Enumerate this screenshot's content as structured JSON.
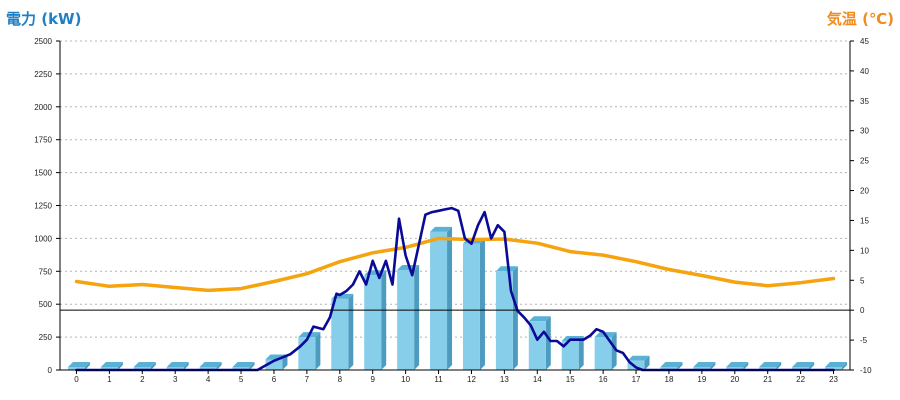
{
  "titles": {
    "left": "電力 (kW)",
    "right": "気温 (℃)"
  },
  "colors": {
    "bar_face": "#87ceeb",
    "bar_side": "#4d9bbf",
    "bar_top": "#5ab1d6",
    "power_line": "#0a0a96",
    "temp_line": "#f5a30f",
    "left_title": "#1f7fc4",
    "right_title": "#f08c1e"
  },
  "chart_data": {
    "type": "bar",
    "categories": [
      "0",
      "1",
      "2",
      "3",
      "4",
      "5",
      "6",
      "7",
      "8",
      "9",
      "10",
      "11",
      "12",
      "13",
      "14",
      "15",
      "16",
      "17",
      "18",
      "19",
      "20",
      "21",
      "22",
      "23"
    ],
    "ylim": [
      0,
      2500
    ],
    "y2lim": [
      -10,
      45
    ],
    "y_ticks": [
      "0",
      "250",
      "500",
      "750",
      "1000",
      "1250",
      "1500",
      "1750",
      "2000",
      "2250",
      "2500"
    ],
    "y2_ticks": [
      "-10",
      "-5",
      "0",
      "5",
      "10",
      "15",
      "20",
      "25",
      "30",
      "35",
      "40",
      "45"
    ],
    "grid": true,
    "series": [
      {
        "kind": "bar",
        "axis": "left",
        "values": [
          0,
          0,
          0,
          0,
          0,
          0,
          80,
          250,
          540,
          720,
          760,
          1050,
          960,
          750,
          370,
          220,
          250,
          70,
          0,
          0,
          0,
          0,
          0,
          0
        ]
      },
      {
        "kind": "line",
        "axis": "left",
        "x": [
          0,
          1,
          2,
          3,
          4,
          5,
          5.5,
          6,
          6.2,
          6.5,
          6.8,
          7,
          7.2,
          7.5,
          7.7,
          7.9,
          8,
          8.2,
          8.4,
          8.6,
          8.8,
          9,
          9.2,
          9.4,
          9.6,
          9.8,
          10,
          10.2,
          10.4,
          10.6,
          10.8,
          11,
          11.2,
          11.4,
          11.6,
          11.8,
          12,
          12.2,
          12.4,
          12.6,
          12.8,
          13,
          13.2,
          13.4,
          13.6,
          13.8,
          14,
          14.2,
          14.4,
          14.6,
          14.8,
          15,
          15.2,
          15.4,
          15.6,
          15.8,
          16,
          16.2,
          16.4,
          16.6,
          16.8,
          17,
          17.2,
          17.3,
          18,
          19,
          20,
          21,
          22,
          23
        ],
        "values": [
          0,
          0,
          0,
          0,
          0,
          0,
          0,
          70,
          90,
          120,
          180,
          230,
          330,
          310,
          400,
          580,
          570,
          600,
          650,
          750,
          650,
          830,
          700,
          830,
          650,
          1150,
          870,
          720,
          950,
          1180,
          1200,
          1210,
          1220,
          1230,
          1210,
          1000,
          960,
          1100,
          1200,
          1000,
          1100,
          1050,
          600,
          450,
          400,
          340,
          230,
          290,
          220,
          220,
          180,
          230,
          230,
          230,
          260,
          310,
          290,
          220,
          150,
          130,
          60,
          20,
          -10,
          -30,
          -30,
          -30,
          -30,
          -30,
          -30,
          -30
        ]
      },
      {
        "kind": "line",
        "axis": "right",
        "x": [
          0,
          1,
          2,
          3,
          4,
          5,
          6,
          7,
          8,
          9,
          10,
          11,
          12,
          13,
          14,
          15,
          16,
          17,
          18,
          19,
          20,
          21,
          22,
          23
        ],
        "values": [
          4.8,
          4,
          4.3,
          3.8,
          3.3,
          3.6,
          4.8,
          6.1,
          8.1,
          9.6,
          10.5,
          12,
          11.8,
          11.9,
          11.2,
          9.8,
          9.2,
          8.1,
          6.8,
          5.8,
          4.7,
          4.1,
          4.6,
          5.3
        ]
      }
    ]
  }
}
